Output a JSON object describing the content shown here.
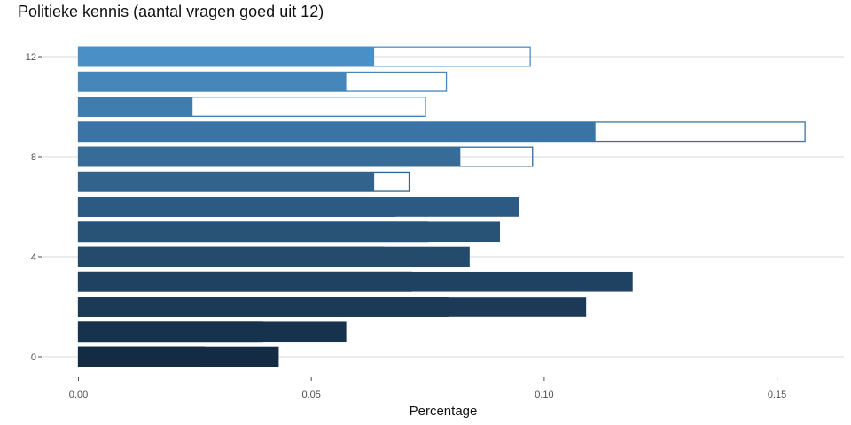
{
  "chart_data": {
    "type": "bar",
    "orientation": "horizontal",
    "title": "Politieke kennis (aantal vragen goed uit 12)",
    "xlabel": "Percentage",
    "ylabel": "",
    "xlim": [
      0,
      0.165
    ],
    "ylim": [
      -0.5,
      12.5
    ],
    "x_ticks": [
      {
        "value": 0,
        "label": "0.00"
      },
      {
        "value": 0.05,
        "label": "0.05"
      },
      {
        "value": 0.1,
        "label": "0.10"
      },
      {
        "value": 0.15,
        "label": "0.15"
      }
    ],
    "y_ticks": [
      {
        "value": 0,
        "label": "0"
      },
      {
        "value": 4,
        "label": "4"
      },
      {
        "value": 8,
        "label": "8"
      },
      {
        "value": 12,
        "label": "12"
      }
    ],
    "categories": [
      0,
      1,
      2,
      3,
      4,
      5,
      6,
      7,
      8,
      9,
      10,
      11,
      12
    ],
    "series": [
      {
        "style": "filled",
        "values": [
          0.043,
          0.0575,
          0.109,
          0.119,
          0.084,
          0.0905,
          0.0945,
          0.0635,
          0.082,
          0.111,
          0.0245,
          0.0575,
          0.0635
        ]
      },
      {
        "style": "outline",
        "values": [
          0.027,
          0.0395,
          0.0795,
          0.0715,
          0.0655,
          0.075,
          0.068,
          0.071,
          0.0975,
          0.156,
          0.0745,
          0.079,
          0.097
        ]
      }
    ],
    "colors": [
      "#132b43",
      "#17324d",
      "#1c3a57",
      "#204262",
      "#244a6c",
      "#295277",
      "#2d5a82",
      "#32638d",
      "#376b98",
      "#3b74a4",
      "#407daf",
      "#4586bb",
      "#4a8fc6"
    ],
    "grid": true,
    "legend": "none"
  }
}
